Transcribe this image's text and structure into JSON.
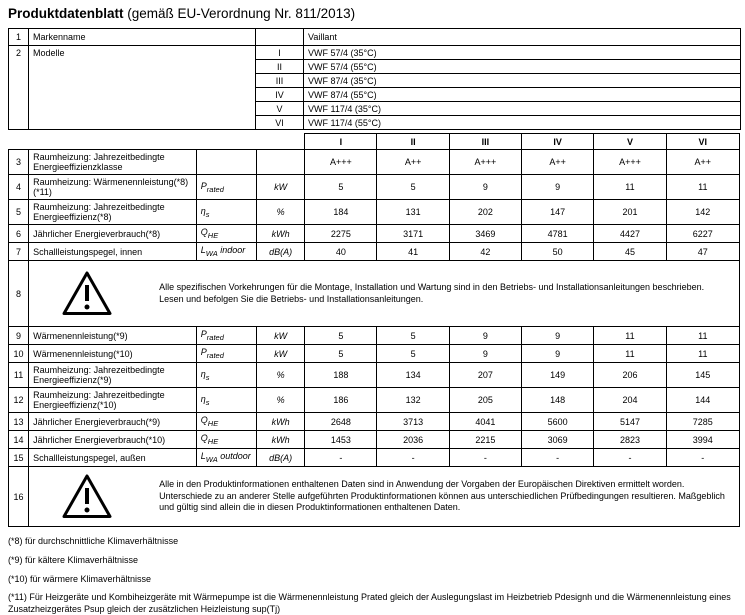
{
  "title": {
    "main": "Produktdatenblatt",
    "suffix": "(gemäß EU-Verordnung Nr. 811/2013)"
  },
  "brand_table": {
    "rows": [
      {
        "num": "1",
        "label": "Markenname",
        "key": "",
        "value": "Vaillant"
      },
      {
        "num": "2",
        "label": "Modelle",
        "models": [
          {
            "key": "I",
            "value": "VWF 57/4 (35°C)"
          },
          {
            "key": "II",
            "value": "VWF 57/4 (55°C)"
          },
          {
            "key": "III",
            "value": "VWF 87/4 (35°C)"
          },
          {
            "key": "IV",
            "value": "VWF 87/4 (55°C)"
          },
          {
            "key": "V",
            "value": "VWF 117/4 (35°C)"
          },
          {
            "key": "VI",
            "value": "VWF 117/4 (55°C)"
          }
        ]
      }
    ]
  },
  "main_table": {
    "columns": [
      "I",
      "II",
      "III",
      "IV",
      "V",
      "VI"
    ],
    "rows": [
      {
        "num": "3",
        "type": "data",
        "lines": 2,
        "label": "Raumheizung: Jahrezeitbedingte Energieeffizienzklasse",
        "symbol": {
          "base": "",
          "sub": "",
          "suffix": ""
        },
        "unit": "",
        "values": [
          "A+++",
          "A++",
          "A+++",
          "A++",
          "A+++",
          "A++"
        ]
      },
      {
        "num": "4",
        "type": "data",
        "lines": 2,
        "label": "Raumheizung: Wärmenennleistung(*8) (*11)",
        "symbol": {
          "base": "P",
          "sub": "rated",
          "suffix": ""
        },
        "unit": "kW",
        "values": [
          "5",
          "5",
          "9",
          "9",
          "11",
          "11"
        ]
      },
      {
        "num": "5",
        "type": "data",
        "lines": 2,
        "label": "Raumheizung: Jahrezeitbedingte Energieeffizienz(*8)",
        "symbol": {
          "base": "η",
          "sub": "s",
          "suffix": ""
        },
        "unit": "%",
        "values": [
          "184",
          "131",
          "202",
          "147",
          "201",
          "142"
        ]
      },
      {
        "num": "6",
        "type": "data",
        "lines": 1,
        "label": "Jährlicher Energieverbrauch(*8)",
        "symbol": {
          "base": "Q",
          "sub": "HE",
          "suffix": ""
        },
        "unit": "kWh",
        "values": [
          "2275",
          "3171",
          "3469",
          "4781",
          "4427",
          "6227"
        ]
      },
      {
        "num": "7",
        "type": "data",
        "lines": 1,
        "label": "Schallleistungspegel, innen",
        "symbol": {
          "base": "L",
          "sub": "WA",
          "suffix": " indoor"
        },
        "unit": "dB(A)",
        "values": [
          "40",
          "41",
          "42",
          "50",
          "45",
          "47"
        ]
      },
      {
        "num": "8",
        "type": "notice",
        "icon": "warning-triangle-icon",
        "text": "Alle spezifischen Vorkehrungen für die Montage, Installation und Wartung sind in den Betriebs- und Installationsanleitungen beschrieben. Lesen und befolgen Sie die Betriebs- und Installationsanleitungen."
      },
      {
        "num": "9",
        "type": "data",
        "lines": 1,
        "label": "Wärmenennleistung(*9)",
        "symbol": {
          "base": "P",
          "sub": "rated",
          "suffix": ""
        },
        "unit": "kW",
        "values": [
          "5",
          "5",
          "9",
          "9",
          "11",
          "11"
        ]
      },
      {
        "num": "10",
        "type": "data",
        "lines": 1,
        "label": "Wärmenennleistung(*10)",
        "symbol": {
          "base": "P",
          "sub": "rated",
          "suffix": ""
        },
        "unit": "kW",
        "values": [
          "5",
          "5",
          "9",
          "9",
          "11",
          "11"
        ]
      },
      {
        "num": "11",
        "type": "data",
        "lines": 2,
        "label": "Raumheizung: Jahrezeitbedingte Energieeffizienz(*9)",
        "symbol": {
          "base": "η",
          "sub": "s",
          "suffix": ""
        },
        "unit": "%",
        "values": [
          "188",
          "134",
          "207",
          "149",
          "206",
          "145"
        ]
      },
      {
        "num": "12",
        "type": "data",
        "lines": 2,
        "label": "Raumheizung: Jahrezeitbedingte Energieeffizienz(*10)",
        "symbol": {
          "base": "η",
          "sub": "s",
          "suffix": ""
        },
        "unit": "%",
        "values": [
          "186",
          "132",
          "205",
          "148",
          "204",
          "144"
        ]
      },
      {
        "num": "13",
        "type": "data",
        "lines": 1,
        "label": "Jährlicher Energieverbrauch(*9)",
        "symbol": {
          "base": "Q",
          "sub": "HE",
          "suffix": ""
        },
        "unit": "kWh",
        "values": [
          "2648",
          "3713",
          "4041",
          "5600",
          "5147",
          "7285"
        ]
      },
      {
        "num": "14",
        "type": "data",
        "lines": 1,
        "label": "Jährlicher Energieverbrauch(*10)",
        "symbol": {
          "base": "Q",
          "sub": "HE",
          "suffix": ""
        },
        "unit": "kWh",
        "values": [
          "1453",
          "2036",
          "2215",
          "3069",
          "2823",
          "3994"
        ]
      },
      {
        "num": "15",
        "type": "data",
        "lines": 1,
        "label": "Schallleistungspegel, außen",
        "symbol": {
          "base": "L",
          "sub": "WA",
          "suffix": " outdoor"
        },
        "unit": "dB(A)",
        "values": [
          "-",
          "-",
          "-",
          "-",
          "-",
          "-"
        ]
      },
      {
        "num": "16",
        "type": "notice",
        "icon": "warning-triangle-icon",
        "text": "Alle in den Produktinformationen enthaltenen Daten sind in Anwendung der Vorgaben der Europäischen Direktiven ermittelt worden. Unterschiede zu an anderer Stelle aufgeführten Produktinformationen können aus unterschiedlichen Prüfbedingungen resultieren. Maßgeblich und gültig sind allein die in diesen Produktinformationen enthaltenen Daten."
      }
    ]
  },
  "footnotes": [
    "(*8) für durchschnittliche Klimaverhältnisse",
    "(*9) für kältere Klimaverhältnisse",
    "(*10) für wärmere Klimaverhältnisse",
    "(*11) Für Heizgeräte und Kombiheizgeräte mit Wärmepumpe ist die Wärmenennleistung Prated gleich der Auslegungslast im Heizbetrieb Pdesignh und die Wärmenennleistung eines Zusatzheizgerätes Psup gleich der zusätzlichen Heizleistung sup(Tj)"
  ]
}
